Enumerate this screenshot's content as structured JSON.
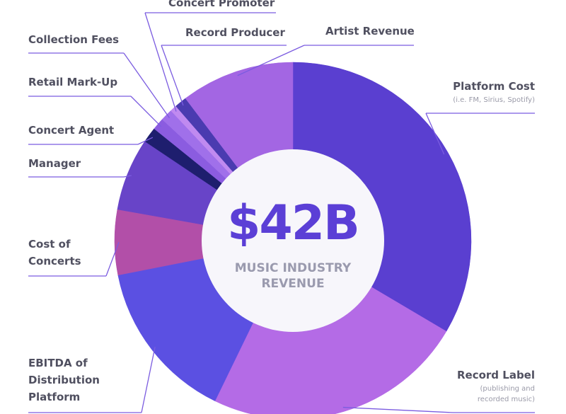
{
  "chart_data": {
    "type": "donut",
    "center_value": "$42B",
    "center_label": "MUSIC INDUSTRY REVENUE",
    "categories": [
      "Platform Cost",
      "Record Label",
      "EBITDA of Distribution Platform",
      "Cost of Concerts",
      "Manager",
      "Concert Agent",
      "Retail Mark-Up",
      "Collection Fees",
      "Concert Promoter",
      "Record Producer",
      "Artist Revenue"
    ],
    "values": [
      33.5,
      23.7,
      14.7,
      5.9,
      6.6,
      1.4,
      1.1,
      1.1,
      0.6,
      1.1,
      10.3
    ],
    "colors": [
      "#5a3fd0",
      "#b46be6",
      "#5b50e2",
      "#b24fa8",
      "#6844c8",
      "#1e1e6e",
      "#8b5ce0",
      "#a070ea",
      "#c08af0",
      "#4a3bb0",
      "#a366e3"
    ],
    "annotations": [
      "(i.e. FM, Sirius, Spotify)",
      "(publishing and recorded music)"
    ]
  }
}
